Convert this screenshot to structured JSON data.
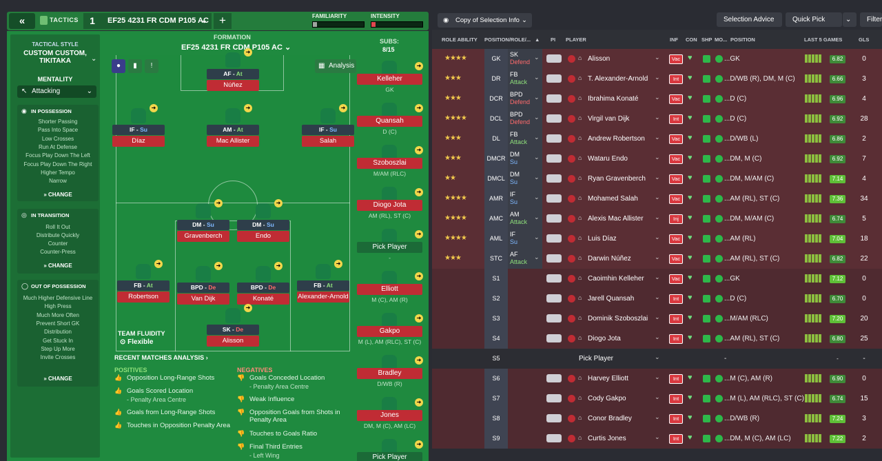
{
  "topbar": {
    "tactics_label": "TACTICS",
    "tactic_number": "1",
    "tactic_name": "EF25 4231 FR CDM P105 AC",
    "familiarity_label": "FAMILIARITY",
    "intensity_label": "INTENSITY",
    "familiarity_level": 0.08,
    "intensity_level": 0.08
  },
  "sidebar": {
    "tactical_style_label": "TACTICAL STYLE",
    "tactical_style_value": "CUSTOM CUSTOM, TIKITAKA",
    "mentality_label": "MENTALITY",
    "mentality_value": "Attacking",
    "in_possession": {
      "title": "IN POSSESSION",
      "items": [
        "Shorter Passing",
        "Pass Into Space",
        "Low Crosses",
        "Run At Defense",
        "Focus Play Down The Left",
        "Focus Play Down The Right",
        "Higher Tempo",
        "Narrow"
      ],
      "change": "CHANGE"
    },
    "in_transition": {
      "title": "IN TRANSITION",
      "items": [
        "Roll It Out",
        "Distribute Quickly",
        "Counter",
        "Counter-Press"
      ],
      "change": "CHANGE"
    },
    "out_of_possession": {
      "title": "OUT OF POSSESSION",
      "items": [
        "Much Higher Defensive Line",
        "High Press",
        "Much More Often",
        "Prevent Short GK",
        "Distribution",
        "Get Stuck In",
        "Step Up More",
        "Invite Crosses"
      ],
      "change": "CHANGE"
    }
  },
  "formation": {
    "label": "FORMATION",
    "name": "EF25 4231 FR CDM P105 AC",
    "analysis_button": "Analysis",
    "team_fluidity_label": "TEAM FLUIDITY",
    "team_fluidity_value": "Flexible",
    "players": [
      {
        "role": "AF",
        "duty": "At",
        "name": "Núñez"
      },
      {
        "role": "IF",
        "duty": "Su",
        "name": "Díaz"
      },
      {
        "role": "AM",
        "duty": "At",
        "name": "Mac Allister"
      },
      {
        "role": "IF",
        "duty": "Su",
        "name": "Salah"
      },
      {
        "role": "DM",
        "duty": "Su",
        "name": "Gravenberch"
      },
      {
        "role": "DM",
        "duty": "Su",
        "name": "Endo"
      },
      {
        "role": "FB",
        "duty": "At",
        "name": "Robertson"
      },
      {
        "role": "BPD",
        "duty": "De",
        "name": "Van Dijk"
      },
      {
        "role": "BPD",
        "duty": "De",
        "name": "Konaté"
      },
      {
        "role": "FB",
        "duty": "At",
        "name": "Alexander-Arnold"
      },
      {
        "role": "SK",
        "duty": "De",
        "name": "Alisson"
      }
    ]
  },
  "subs": {
    "label": "SUBS:",
    "count": "8/15",
    "items": [
      {
        "name": "Kelleher",
        "pos": "GK"
      },
      {
        "name": "Quansah",
        "pos": "D (C)"
      },
      {
        "name": "Szoboszlai",
        "pos": "M/AM (RLC)"
      },
      {
        "name": "Diogo Jota",
        "pos": "AM (RL), ST (C)"
      },
      {
        "name": "Pick Player",
        "pos": "-"
      },
      {
        "name": "Elliott",
        "pos": "M (C), AM (R)"
      },
      {
        "name": "Gakpo",
        "pos": "M (L), AM (RLC), ST (C)"
      },
      {
        "name": "Bradley",
        "pos": "D/WB (R)"
      },
      {
        "name": "Jones",
        "pos": "DM, M (C), AM (LC)"
      },
      {
        "name": "Pick Player",
        "pos": ""
      }
    ]
  },
  "analysis": {
    "title": "RECENT MATCHES ANALYSIS",
    "positives_label": "POSITIVES",
    "positives": [
      {
        "text": "Opposition Long-Range Shots",
        "sub": ""
      },
      {
        "text": "Goals Scored Location",
        "sub": "- Penalty Area Centre"
      },
      {
        "text": "Goals from Long-Range Shots",
        "sub": ""
      },
      {
        "text": "Touches in Opposition Penalty Area",
        "sub": ""
      }
    ],
    "negatives_label": "NEGATIVES",
    "negatives": [
      {
        "text": "Goals Conceded Location",
        "sub": "- Penalty Area Centre"
      },
      {
        "text": "Weak Influence",
        "sub": ""
      },
      {
        "text": "Opposition Goals from Shots in Penalty Area",
        "sub": ""
      },
      {
        "text": "Touches to Goals Ratio",
        "sub": ""
      },
      {
        "text": "Final Third Entries",
        "sub": "- Left Wing"
      }
    ]
  },
  "right": {
    "copy_selection": "Copy of Selection Info",
    "selection_advice": "Selection Advice",
    "quick_pick": "Quick Pick",
    "filter": "Filter",
    "headers": {
      "role_ability": "ROLE ABILITY",
      "position_role": "POSITION/ROLE/...",
      "pi": "PI",
      "player": "PLAYER",
      "inf": "INF",
      "con": "CON",
      "shp": "SHP",
      "mo": "MO...",
      "position": "POSITION",
      "last5": "LAST 5 GAMES",
      "gls": "GLS"
    },
    "rows": [
      {
        "stars": "★★★★",
        "pos": "GK",
        "role": "SK",
        "duty": "Defend",
        "duty_color": "#ff6b6b",
        "player": "Alisson",
        "inf": "Vac",
        "position": "...GK",
        "rating": "6.82",
        "hi": false,
        "gls": "0",
        "bars": [
          3,
          3,
          3,
          3,
          3
        ]
      },
      {
        "stars": "★★★",
        "pos": "DR",
        "role": "FB",
        "duty": "Attack",
        "duty_color": "#8fe07b",
        "player": "T. Alexander-Arnold",
        "inf": "Int",
        "position": "...D/WB (R), DM, M (C)",
        "rating": "6.66",
        "hi": false,
        "gls": "3",
        "bars": [
          3,
          3,
          3,
          3,
          3
        ]
      },
      {
        "stars": "★★★",
        "pos": "DCR",
        "role": "BPD",
        "duty": "Defend",
        "duty_color": "#ff6b6b",
        "player": "Ibrahima Konaté",
        "inf": "Vac",
        "position": "...D (C)",
        "rating": "6.96",
        "hi": false,
        "gls": "4",
        "bars": [
          3,
          3,
          3,
          3,
          3
        ]
      },
      {
        "stars": "★★★★",
        "pos": "DCL",
        "role": "BPD",
        "duty": "Defend",
        "duty_color": "#ff6b6b",
        "player": "Virgil van Dijk",
        "inf": "Int",
        "position": "...D (C)",
        "rating": "6.92",
        "hi": false,
        "gls": "28",
        "bars": [
          3,
          3,
          3,
          3,
          3
        ]
      },
      {
        "stars": "★★★",
        "pos": "DL",
        "role": "FB",
        "duty": "Attack",
        "duty_color": "#8fe07b",
        "player": "Andrew Robertson",
        "inf": "Vac",
        "position": "...D/WB (L)",
        "rating": "6.86",
        "hi": false,
        "gls": "2",
        "bars": [
          3,
          3,
          3,
          3,
          3
        ]
      },
      {
        "stars": "★★★",
        "pos": "DMCR",
        "role": "DM",
        "duty": "Su",
        "duty_color": "#7fb8ff",
        "player": "Wataru Endo",
        "inf": "Vac",
        "position": "...DM, M (C)",
        "rating": "6.92",
        "hi": false,
        "gls": "7",
        "bars": [
          3,
          3,
          3,
          3,
          3
        ]
      },
      {
        "stars": "★★",
        "pos": "DMCL",
        "role": "DM",
        "duty": "Su",
        "duty_color": "#7fb8ff",
        "player": "Ryan Gravenberch",
        "inf": "Vac",
        "position": "...DM, M/AM (C)",
        "rating": "7.14",
        "hi": true,
        "gls": "4",
        "bars": [
          3,
          3,
          3,
          3,
          3
        ]
      },
      {
        "stars": "★★★★",
        "pos": "AMR",
        "role": "IF",
        "duty": "Su",
        "duty_color": "#7fb8ff",
        "player": "Mohamed Salah",
        "inf": "Vac",
        "position": "...AM (RL), ST (C)",
        "rating": "7.36",
        "hi": true,
        "gls": "34",
        "bars": [
          3,
          3,
          3,
          3,
          3
        ]
      },
      {
        "stars": "★★★★",
        "pos": "AMC",
        "role": "AM",
        "duty": "Attack",
        "duty_color": "#8fe07b",
        "player": "Alexis Mac Allister",
        "inf": "Inj",
        "position": "...DM, M/AM (C)",
        "rating": "6.74",
        "hi": false,
        "gls": "5",
        "bars": [
          3,
          3,
          3,
          3,
          3
        ]
      },
      {
        "stars": "★★★★",
        "pos": "AML",
        "role": "IF",
        "duty": "Su",
        "duty_color": "#7fb8ff",
        "player": "Luis Díaz",
        "inf": "Vac",
        "position": "...AM (RL)",
        "rating": "7.04",
        "hi": true,
        "gls": "18",
        "bars": [
          3,
          3,
          3,
          3,
          3
        ]
      },
      {
        "stars": "★★★",
        "pos": "STC",
        "role": "AF",
        "duty": "Attack",
        "duty_color": "#8fe07b",
        "player": "Darwin Núñez",
        "inf": "Vac",
        "position": "...AM (RL), ST (C)",
        "rating": "6.82",
        "hi": false,
        "gls": "22",
        "bars": [
          3,
          3,
          3,
          3,
          3
        ]
      },
      {
        "stars": "",
        "pos": "S1",
        "role": "",
        "duty": "",
        "duty_color": "",
        "player": "Caoimhin Kelleher",
        "inf": "Vac",
        "position": "...GK",
        "rating": "7.12",
        "hi": true,
        "gls": "0",
        "bars": [
          3,
          3,
          3,
          3,
          3
        ]
      },
      {
        "stars": "",
        "pos": "S2",
        "role": "",
        "duty": "",
        "duty_color": "",
        "player": "Jarell Quansah",
        "inf": "Int",
        "position": "...D (C)",
        "rating": "6.70",
        "hi": false,
        "gls": "0",
        "bars": [
          3,
          3,
          3,
          3,
          3
        ]
      },
      {
        "stars": "",
        "pos": "S3",
        "role": "",
        "duty": "",
        "duty_color": "",
        "player": "Dominik Szoboszlai",
        "inf": "Int",
        "position": "...M/AM (RLC)",
        "rating": "7.20",
        "hi": true,
        "gls": "20",
        "bars": [
          3,
          3,
          3,
          3,
          3
        ]
      },
      {
        "stars": "",
        "pos": "S4",
        "role": "",
        "duty": "",
        "duty_color": "",
        "player": "Diogo Jota",
        "inf": "Int",
        "position": "...AM (RL), ST (C)",
        "rating": "6.80",
        "hi": false,
        "gls": "25",
        "bars": [
          3,
          3,
          3,
          3,
          3
        ]
      },
      {
        "stars": "",
        "pos": "S5",
        "role": "",
        "duty": "",
        "duty_color": "",
        "player": "Pick Player",
        "inf": "",
        "position": "-",
        "rating": "-",
        "hi": false,
        "gls": "-",
        "bars": [],
        "empty": true
      },
      {
        "stars": "",
        "pos": "S6",
        "role": "",
        "duty": "",
        "duty_color": "",
        "player": "Harvey Elliott",
        "inf": "Int",
        "position": "...M (C), AM (R)",
        "rating": "6.90",
        "hi": false,
        "gls": "0",
        "bars": [
          3,
          3,
          3,
          3,
          3
        ]
      },
      {
        "stars": "",
        "pos": "S7",
        "role": "",
        "duty": "",
        "duty_color": "",
        "player": "Cody Gakpo",
        "inf": "Int",
        "position": "...M (L), AM (RLC), ST (C)",
        "rating": "6.74",
        "hi": false,
        "gls": "15",
        "bars": [
          3,
          3,
          3,
          3,
          3
        ]
      },
      {
        "stars": "",
        "pos": "S8",
        "role": "",
        "duty": "",
        "duty_color": "",
        "player": "Conor Bradley",
        "inf": "Int",
        "position": "...D/WB (R)",
        "rating": "7.24",
        "hi": true,
        "gls": "3",
        "bars": [
          3,
          3,
          3,
          3,
          3
        ]
      },
      {
        "stars": "",
        "pos": "S9",
        "role": "",
        "duty": "",
        "duty_color": "",
        "player": "Curtis Jones",
        "inf": "Int",
        "position": "...DM, M (C), AM (LC)",
        "rating": "7.22",
        "hi": true,
        "gls": "2",
        "bars": [
          3,
          3,
          3,
          3,
          3
        ]
      }
    ],
    "colors": {
      "row_red": "#5a2e34",
      "accent_green": "#1f8a3f",
      "bar_green": "#8cbf3f"
    }
  }
}
